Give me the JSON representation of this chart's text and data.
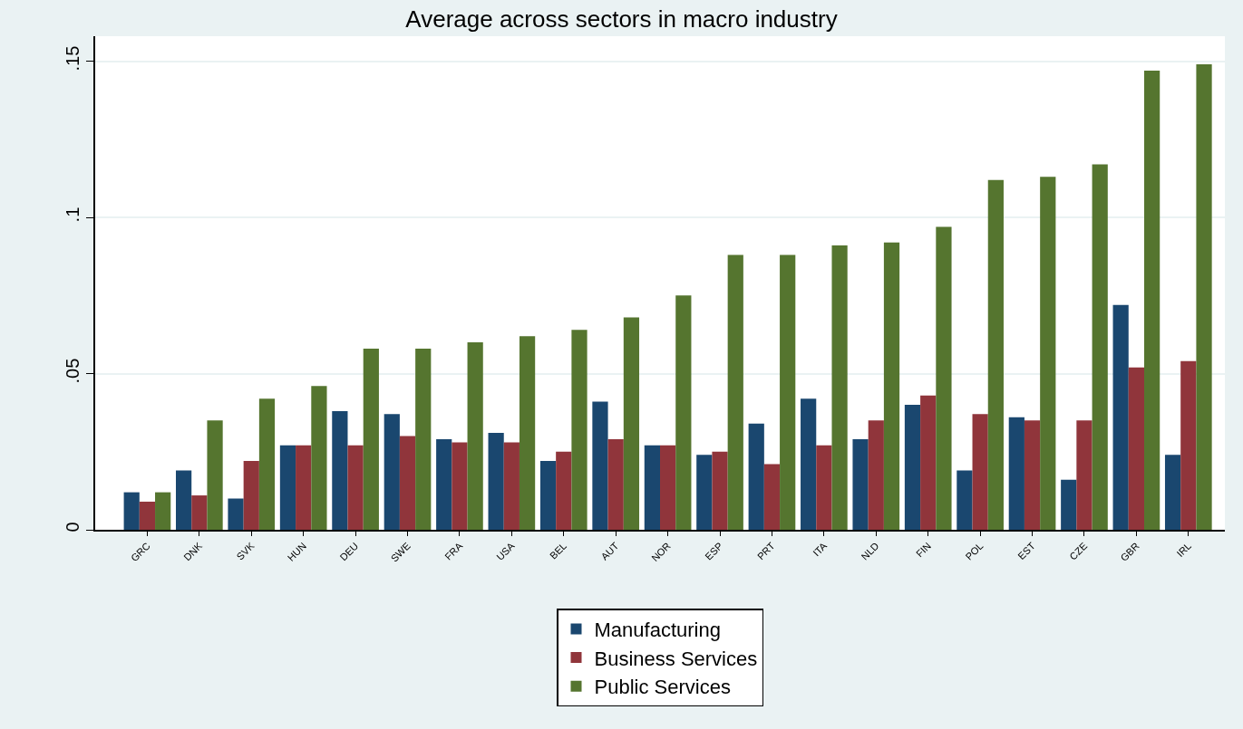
{
  "chart_data": {
    "type": "bar",
    "title": "Average across sectors in macro industry",
    "categories": [
      "GRC",
      "DNK",
      "SVK",
      "HUN",
      "DEU",
      "SWE",
      "FRA",
      "USA",
      "BEL",
      "AUT",
      "NOR",
      "ESP",
      "PRT",
      "ITA",
      "NLD",
      "FIN",
      "POL",
      "EST",
      "CZE",
      "GBR",
      "IRL"
    ],
    "series": [
      {
        "name": "Manufacturing",
        "color": "#1a476f",
        "values": [
          0.012,
          0.019,
          0.01,
          0.027,
          0.038,
          0.037,
          0.029,
          0.031,
          0.022,
          0.041,
          0.027,
          0.024,
          0.034,
          0.042,
          0.029,
          0.04,
          0.019,
          0.036,
          0.016,
          0.072,
          0.024
        ]
      },
      {
        "name": "Business Services",
        "color": "#90353b",
        "values": [
          0.009,
          0.011,
          0.022,
          0.027,
          0.027,
          0.03,
          0.028,
          0.028,
          0.025,
          0.029,
          0.027,
          0.025,
          0.021,
          0.027,
          0.035,
          0.043,
          0.037,
          0.035,
          0.035,
          0.052,
          0.054
        ]
      },
      {
        "name": "Public Services",
        "color": "#55752f",
        "values": [
          0.012,
          0.035,
          0.042,
          0.046,
          0.058,
          0.058,
          0.06,
          0.062,
          0.064,
          0.068,
          0.075,
          0.088,
          0.088,
          0.091,
          0.092,
          0.097,
          0.112,
          0.113,
          0.117,
          0.147,
          0.149
        ]
      }
    ],
    "ylim": [
      0,
      0.158
    ],
    "yticks": [
      0,
      {
        "value": 0.05,
        "label": ".05"
      },
      {
        "value": 0.1,
        "label": ".1"
      },
      {
        "value": 0.15,
        "label": ".15"
      }
    ],
    "grid": "y",
    "legend": "bottom"
  }
}
